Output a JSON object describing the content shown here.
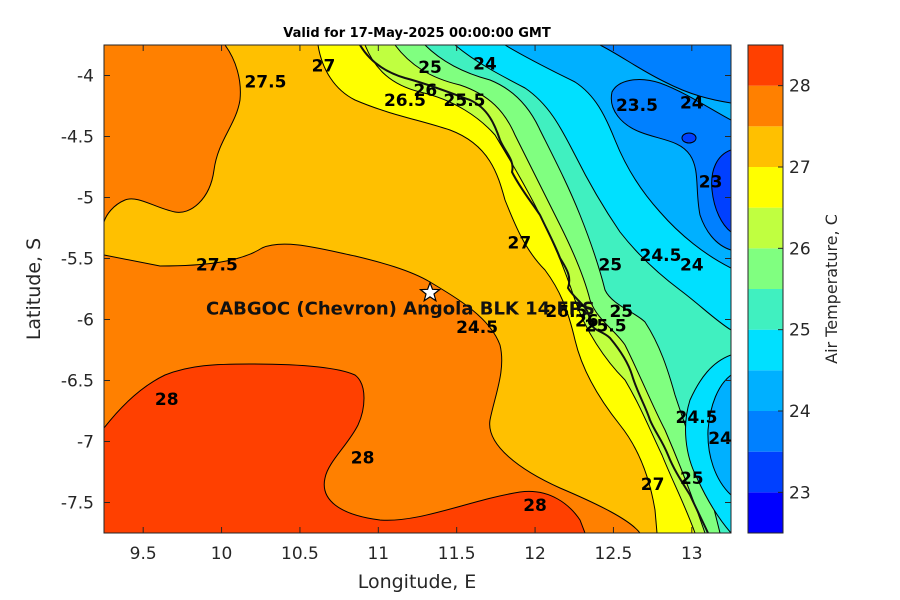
{
  "chart_data": {
    "type": "heatmap",
    "subtype": "filled-contour",
    "title": "Valid for 17-May-2025 00:00:00 GMT",
    "xlabel": "Longitude, E",
    "ylabel": "Latitude, S",
    "xlim": [
      9.25,
      13.25
    ],
    "ylim": [
      -7.75,
      -3.75
    ],
    "xticks": [
      9.5,
      10,
      10.5,
      11,
      11.5,
      12,
      12.5,
      13
    ],
    "xtick_labels": [
      "9.5",
      "10",
      "10.5",
      "11",
      "11.5",
      "12",
      "12.5",
      "13"
    ],
    "yticks": [
      -4,
      -4.5,
      -5,
      -5.5,
      -6,
      -6.5,
      -7,
      -7.5
    ],
    "ytick_labels": [
      "-4",
      "-4.5",
      "-5",
      "-5.5",
      "-6",
      "-6.5",
      "-7",
      "-7.5"
    ],
    "colorbar": {
      "label": "Air Temperature, C",
      "range": [
        22.5,
        28.5
      ],
      "ticks": [
        23,
        24,
        25,
        26,
        27,
        28
      ],
      "tick_labels": [
        "23",
        "24",
        "25",
        "26",
        "27",
        "28"
      ],
      "levels": [
        22.5,
        23,
        23.5,
        24,
        24.5,
        25,
        25.5,
        26,
        26.5,
        27,
        27.5,
        28,
        28.5
      ],
      "colors": [
        "#0000ff",
        "#0040ff",
        "#0080ff",
        "#00b0ff",
        "#00e0ff",
        "#40f0c0",
        "#80ff80",
        "#c0ff40",
        "#ffff00",
        "#ffc000",
        "#ff8000",
        "#ff4000"
      ]
    },
    "contour_labels": [
      {
        "text": "27.5",
        "x": 9.97,
        "y": -5.55
      },
      {
        "text": "27.5",
        "x": 10.28,
        "y": -4.05
      },
      {
        "text": "27",
        "x": 10.65,
        "y": -3.92
      },
      {
        "text": "25",
        "x": 11.33,
        "y": -3.93
      },
      {
        "text": "24",
        "x": 11.68,
        "y": -3.9
      },
      {
        "text": "26",
        "x": 11.3,
        "y": -4.12
      },
      {
        "text": "26.5",
        "x": 11.17,
        "y": -4.2
      },
      {
        "text": "25.5",
        "x": 11.55,
        "y": -4.2
      },
      {
        "text": "23.5",
        "x": 12.65,
        "y": -4.24
      },
      {
        "text": "24",
        "x": 13.0,
        "y": -4.22
      },
      {
        "text": "23",
        "x": 13.12,
        "y": -4.87
      },
      {
        "text": "27",
        "x": 11.9,
        "y": -5.37
      },
      {
        "text": "25",
        "x": 12.48,
        "y": -5.55
      },
      {
        "text": "24.5",
        "x": 12.8,
        "y": -5.47
      },
      {
        "text": "24",
        "x": 13.0,
        "y": -5.55
      },
      {
        "text": "26.5",
        "x": 12.2,
        "y": -5.93
      },
      {
        "text": "26",
        "x": 12.33,
        "y": -6.01
      },
      {
        "text": "25.5",
        "x": 12.45,
        "y": -6.05
      },
      {
        "text": "25",
        "x": 12.55,
        "y": -5.93
      },
      {
        "text": "24.5",
        "x": 11.63,
        "y": -6.06
      },
      {
        "text": "28",
        "x": 9.65,
        "y": -6.65
      },
      {
        "text": "28",
        "x": 10.9,
        "y": -7.13
      },
      {
        "text": "28",
        "x": 12.0,
        "y": -7.52
      },
      {
        "text": "27",
        "x": 12.75,
        "y": -7.35
      },
      {
        "text": "25",
        "x": 13.0,
        "y": -7.3
      },
      {
        "text": "24.5",
        "x": 13.03,
        "y": -6.8
      },
      {
        "text": "24",
        "x": 13.18,
        "y": -6.97
      }
    ],
    "marker": {
      "label": "CABGOC (Chevron)  Angola BLK 14 FPS",
      "x": 11.33,
      "y": -5.78,
      "symbol": "star"
    }
  }
}
